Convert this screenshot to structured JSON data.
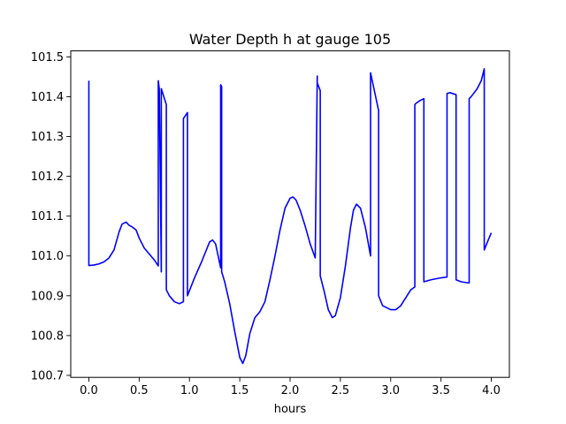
{
  "chart_data": {
    "type": "line",
    "title": "Water Depth h at gauge 105",
    "xlabel": "hours",
    "ylabel": "",
    "xlim": [
      -0.18,
      4.18
    ],
    "ylim": [
      100.695,
      101.515
    ],
    "x_ticks": [
      0.0,
      0.5,
      1.0,
      1.5,
      2.0,
      2.5,
      3.0,
      3.5,
      4.0
    ],
    "x_tick_labels": [
      "0.0",
      "0.5",
      "1.0",
      "1.5",
      "2.0",
      "2.5",
      "3.0",
      "3.5",
      "4.0"
    ],
    "y_ticks": [
      100.7,
      100.8,
      100.9,
      101.0,
      101.1,
      101.2,
      101.3,
      101.4,
      101.5
    ],
    "y_tick_labels": [
      "100.7",
      "100.8",
      "100.9",
      "101.0",
      "101.1",
      "101.2",
      "101.3",
      "101.4",
      "101.5"
    ],
    "grid": false,
    "legend": "none",
    "series": [
      {
        "color": "#0000ff",
        "x": [
          0.0,
          0.0,
          0.05,
          0.1,
          0.15,
          0.2,
          0.25,
          0.3,
          0.33,
          0.37,
          0.4,
          0.43,
          0.47,
          0.5,
          0.55,
          0.6,
          0.65,
          0.69,
          0.69,
          0.7,
          0.72,
          0.72,
          0.77,
          0.77,
          0.8,
          0.85,
          0.9,
          0.94,
          0.94,
          0.98,
          0.98,
          1.05,
          1.12,
          1.2,
          1.23,
          1.26,
          1.31,
          1.31,
          1.32,
          1.32,
          1.35,
          1.4,
          1.45,
          1.5,
          1.53,
          1.56,
          1.6,
          1.65,
          1.7,
          1.75,
          1.8,
          1.85,
          1.9,
          1.95,
          2.0,
          2.03,
          2.06,
          2.1,
          2.15,
          2.2,
          2.25,
          2.27,
          2.27,
          2.3,
          2.3,
          2.34,
          2.38,
          2.42,
          2.45,
          2.5,
          2.55,
          2.6,
          2.63,
          2.66,
          2.7,
          2.75,
          2.8,
          2.8,
          2.88,
          2.88,
          2.92,
          3.0,
          3.05,
          3.1,
          3.15,
          3.2,
          3.24,
          3.24,
          3.25,
          3.25,
          3.29,
          3.33,
          3.33,
          3.4,
          3.5,
          3.56,
          3.56,
          3.59,
          3.65,
          3.65,
          3.7,
          3.78,
          3.78,
          3.8,
          3.86,
          3.9,
          3.93,
          3.93,
          3.97,
          4.0
        ],
        "values": [
          101.44,
          100.976,
          100.977,
          100.98,
          100.985,
          100.995,
          101.015,
          101.06,
          101.08,
          101.085,
          101.077,
          101.073,
          101.065,
          101.045,
          101.02,
          101.005,
          100.99,
          100.975,
          101.44,
          101.42,
          100.96,
          101.42,
          101.38,
          100.915,
          100.9,
          100.885,
          100.88,
          100.885,
          101.345,
          101.36,
          100.9,
          100.945,
          100.985,
          101.035,
          101.04,
          101.03,
          100.97,
          101.43,
          101.425,
          100.96,
          100.935,
          100.88,
          100.81,
          100.745,
          100.73,
          100.75,
          100.805,
          100.845,
          100.86,
          100.885,
          100.94,
          101.0,
          101.065,
          101.12,
          101.145,
          101.148,
          101.14,
          101.115,
          101.075,
          101.03,
          100.995,
          101.452,
          101.435,
          101.415,
          100.95,
          100.91,
          100.865,
          100.845,
          100.85,
          100.895,
          100.975,
          101.07,
          101.115,
          101.13,
          101.12,
          101.07,
          101.0,
          101.46,
          101.365,
          100.9,
          100.875,
          100.865,
          100.865,
          100.875,
          100.895,
          100.915,
          100.922,
          101.38,
          101.383,
          101.383,
          101.39,
          101.395,
          100.935,
          100.94,
          100.945,
          100.947,
          101.408,
          101.41,
          101.405,
          100.94,
          100.935,
          100.932,
          101.395,
          101.4,
          101.42,
          101.44,
          101.47,
          101.015,
          101.04,
          101.058
        ]
      }
    ]
  }
}
